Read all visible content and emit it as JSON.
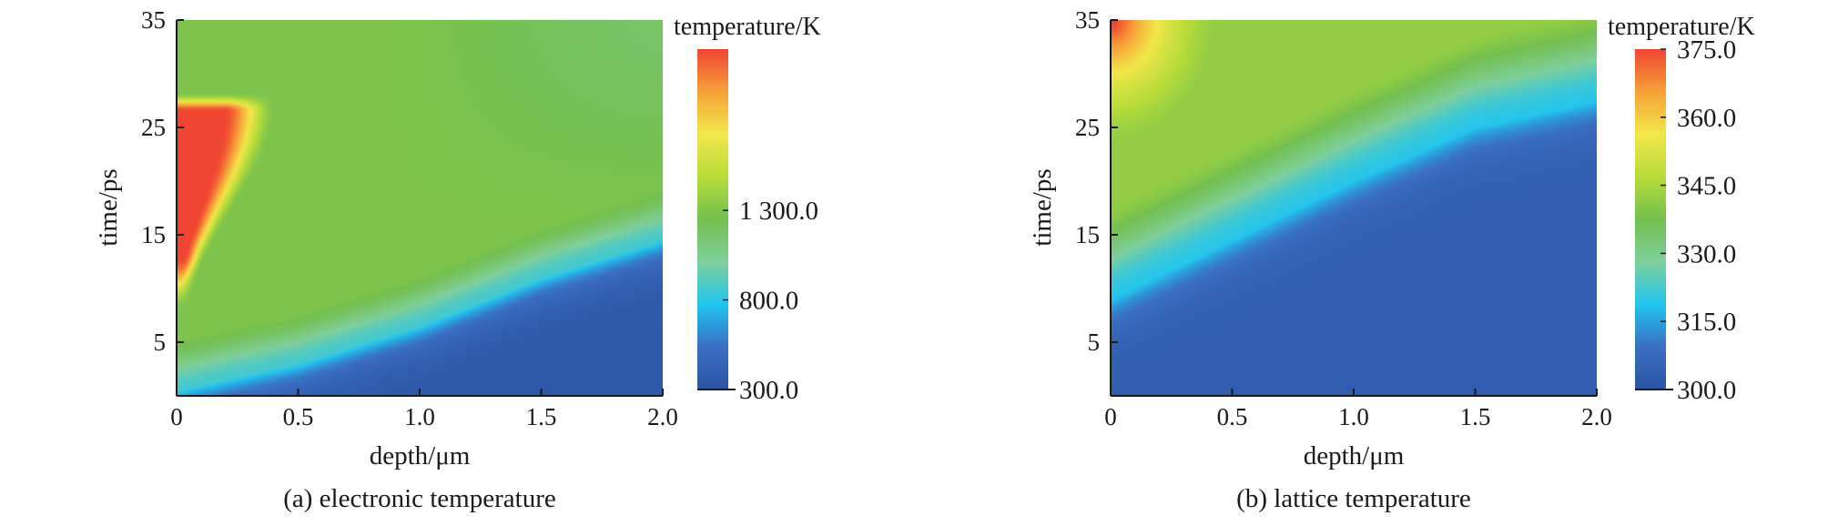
{
  "chart_data": [
    {
      "type": "heatmap",
      "caption": "(a) electronic temperature",
      "xlabel": "depth/μm",
      "ylabel": "time/ps",
      "xlim": [
        0,
        2.0
      ],
      "ylim": [
        0,
        35
      ],
      "x_ticks": [
        "0",
        "0.5",
        "1.0",
        "1.5",
        "2.0"
      ],
      "y_ticks": [
        "5",
        "15",
        "25",
        "35"
      ],
      "x_tick_values": [
        0,
        0.5,
        1.0,
        1.5,
        2.0
      ],
      "y_tick_values": [
        5,
        15,
        25,
        35
      ],
      "colorbar": {
        "title": "temperature/K",
        "min": 300,
        "max": 2200,
        "tick_labels": [
          "300.0",
          "800.0",
          "1 300.0"
        ],
        "tick_values": [
          300,
          800,
          1300
        ]
      },
      "colormap": [
        "#2c54a3",
        "#3a6fc4",
        "#21c5ef",
        "#7fcf9c",
        "#73c04f",
        "#b8dc3a",
        "#f2e74a",
        "#f7a238",
        "#ef4532"
      ],
      "field": {
        "model": "electronic",
        "peak_temperature": 2200,
        "peak_region_x_max": 0.35,
        "peak_region_time_range": [
          10,
          27
        ],
        "front_time_at_depth": [
          [
            0,
            0.5
          ],
          [
            0.5,
            3
          ],
          [
            1.0,
            6.5
          ],
          [
            1.5,
            11
          ],
          [
            2.0,
            14.5
          ]
        ]
      }
    },
    {
      "type": "heatmap",
      "caption": "(b) lattice temperature",
      "xlabel": "depth/μm",
      "ylabel": "time/ps",
      "xlim": [
        0,
        2.0
      ],
      "ylim": [
        0,
        35
      ],
      "x_ticks": [
        "0",
        "0.5",
        "1.0",
        "1.5",
        "2.0"
      ],
      "y_ticks": [
        "5",
        "15",
        "25",
        "35"
      ],
      "x_tick_values": [
        0,
        0.5,
        1.0,
        1.5,
        2.0
      ],
      "y_tick_values": [
        5,
        15,
        25,
        35
      ],
      "colorbar": {
        "title": "temperature/K",
        "min": 300,
        "max": 375,
        "tick_labels": [
          "300.0",
          "315.0",
          "330.0",
          "345.0",
          "360.0",
          "375.0"
        ],
        "tick_values": [
          300,
          315,
          330,
          345,
          360,
          375
        ]
      },
      "colormap": [
        "#2c54a3",
        "#3a6fc4",
        "#21c5ef",
        "#7fcf9c",
        "#73c04f",
        "#b8dc3a",
        "#f2e74a",
        "#f7a238",
        "#ef4532"
      ],
      "field": {
        "model": "lattice",
        "peak_temperature": 375,
        "peak_corner": [
          0,
          35
        ],
        "front_time_at_depth": [
          [
            0,
            9
          ],
          [
            0.5,
            14.5
          ],
          [
            1.0,
            20
          ],
          [
            1.5,
            25
          ],
          [
            2.0,
            27.5
          ]
        ]
      }
    }
  ]
}
